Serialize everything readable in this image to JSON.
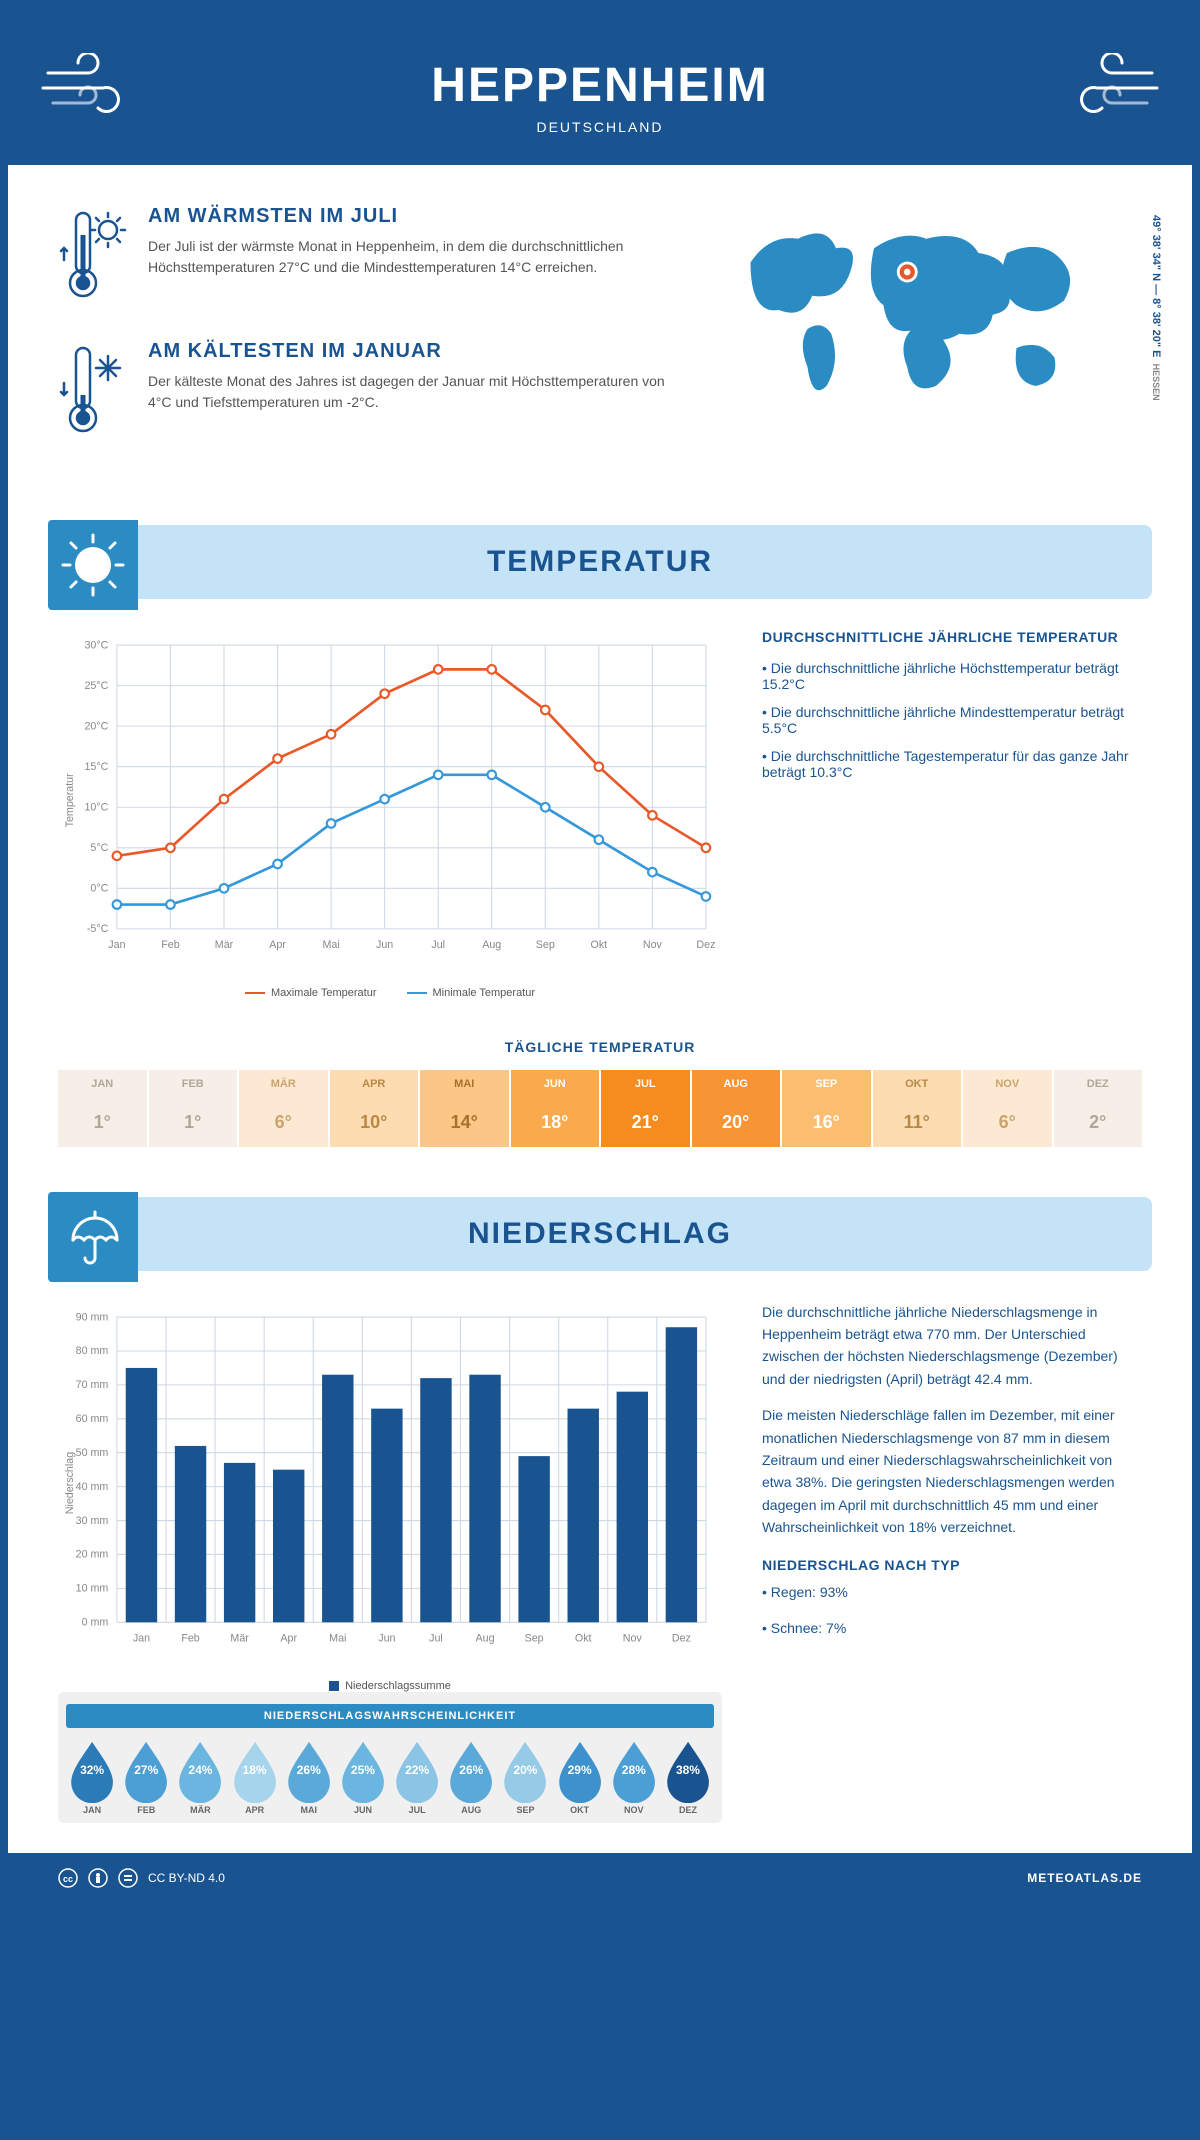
{
  "header": {
    "city": "HEPPENHEIM",
    "country": "DEUTSCHLAND"
  },
  "coords": {
    "text": "49° 38' 34\" N — 8° 38' 20\" E",
    "region": "HESSEN"
  },
  "facts": {
    "warm": {
      "title": "AM WÄRMSTEN IM JULI",
      "text": "Der Juli ist der wärmste Monat in Heppenheim, in dem die durchschnittlichen Höchsttemperaturen 27°C und die Mindesttemperaturen 14°C erreichen."
    },
    "cold": {
      "title": "AM KÄLTESTEN IM JANUAR",
      "text": "Der kälteste Monat des Jahres ist dagegen der Januar mit Höchsttemperaturen von 4°C und Tiefsttemperaturen um -2°C."
    }
  },
  "section_temp": "TEMPERATUR",
  "section_precip": "NIEDERSCHLAG",
  "months_short": [
    "Jan",
    "Feb",
    "Mär",
    "Apr",
    "Mai",
    "Jun",
    "Jul",
    "Aug",
    "Sep",
    "Okt",
    "Nov",
    "Dez"
  ],
  "months_caps": [
    "JAN",
    "FEB",
    "MÄR",
    "APR",
    "MAI",
    "JUN",
    "JUL",
    "AUG",
    "SEP",
    "OKT",
    "NOV",
    "DEZ"
  ],
  "temp_chart": {
    "type": "line",
    "ylabel": "Temperatur",
    "ylim": [
      -5,
      30
    ],
    "ytick_step": 5,
    "max_series": [
      4,
      5,
      11,
      16,
      19,
      24,
      27,
      27,
      22,
      15,
      9,
      5
    ],
    "min_series": [
      -2,
      -2,
      0,
      3,
      8,
      11,
      14,
      14,
      10,
      6,
      2,
      -1
    ],
    "max_color": "#e8592a",
    "min_color": "#3498db",
    "grid_color": "#cfd8e3",
    "legend_max": "Maximale Temperatur",
    "legend_min": "Minimale Temperatur"
  },
  "temp_text": {
    "heading": "DURCHSCHNITTLICHE JÄHRLICHE TEMPERATUR",
    "b1": "• Die durchschnittliche jährliche Höchsttemperatur beträgt 15.2°C",
    "b2": "• Die durchschnittliche jährliche Mindesttemperatur beträgt 5.5°C",
    "b3": "• Die durchschnittliche Tagestemperatur für das ganze Jahr beträgt 10.3°C"
  },
  "daily_temp": {
    "title": "TÄGLICHE TEMPERATUR",
    "values": [
      "1°",
      "1°",
      "6°",
      "10°",
      "14°",
      "18°",
      "21°",
      "20°",
      "16°",
      "11°",
      "6°",
      "2°"
    ],
    "bg_colors": [
      "#f5efe7",
      "#f5efe7",
      "#fde9d3",
      "#fddcb2",
      "#fcc786",
      "#faa94d",
      "#f68b1f",
      "#f79433",
      "#fbbd6f",
      "#fddcb2",
      "#fde9d3",
      "#f5efe7"
    ],
    "text_colors": [
      "#b0a797",
      "#b0a797",
      "#c9a46e",
      "#b98845",
      "#a8702a",
      "#ffffff",
      "#ffffff",
      "#ffffff",
      "#ffffff",
      "#b98845",
      "#c9a46e",
      "#b0a797"
    ]
  },
  "precip_chart": {
    "type": "bar",
    "ylabel": "Niederschlag",
    "ylim": [
      0,
      90
    ],
    "ytick_step": 10,
    "values": [
      75,
      52,
      47,
      45,
      73,
      63,
      72,
      73,
      49,
      63,
      68,
      87
    ],
    "bar_color": "#1a5490",
    "grid_color": "#cfd8e3",
    "legend": "Niederschlagssumme"
  },
  "precip_text": {
    "p1": "Die durchschnittliche jährliche Niederschlagsmenge in Heppenheim beträgt etwa 770 mm. Der Unterschied zwischen der höchsten Niederschlagsmenge (Dezember) und der niedrigsten (April) beträgt 42.4 mm.",
    "p2": "Die meisten Niederschläge fallen im Dezember, mit einer monatlichen Niederschlagsmenge von 87 mm in diesem Zeitraum und einer Niederschlagswahrscheinlichkeit von etwa 38%. Die geringsten Niederschlagsmengen werden dagegen im April mit durchschnittlich 45 mm und einer Wahrscheinlichkeit von 18% verzeichnet.",
    "type_heading": "NIEDERSCHLAG NACH TYP",
    "type1": "• Regen: 93%",
    "type2": "• Schnee: 7%"
  },
  "prob": {
    "title": "NIEDERSCHLAGSWAHRSCHEINLICHKEIT",
    "values": [
      "32%",
      "27%",
      "24%",
      "18%",
      "26%",
      "25%",
      "22%",
      "26%",
      "20%",
      "29%",
      "28%",
      "38%"
    ],
    "colors": [
      "#2b7bb9",
      "#4b9fd5",
      "#6bb6e0",
      "#a5d4ec",
      "#5aa9d9",
      "#6bb6e0",
      "#8ac5e5",
      "#5aa9d9",
      "#96cbe7",
      "#3d92cd",
      "#4b9fd5",
      "#1a5490"
    ]
  },
  "footer": {
    "license": "CC BY-ND 4.0",
    "site": "METEOATLAS.DE"
  }
}
